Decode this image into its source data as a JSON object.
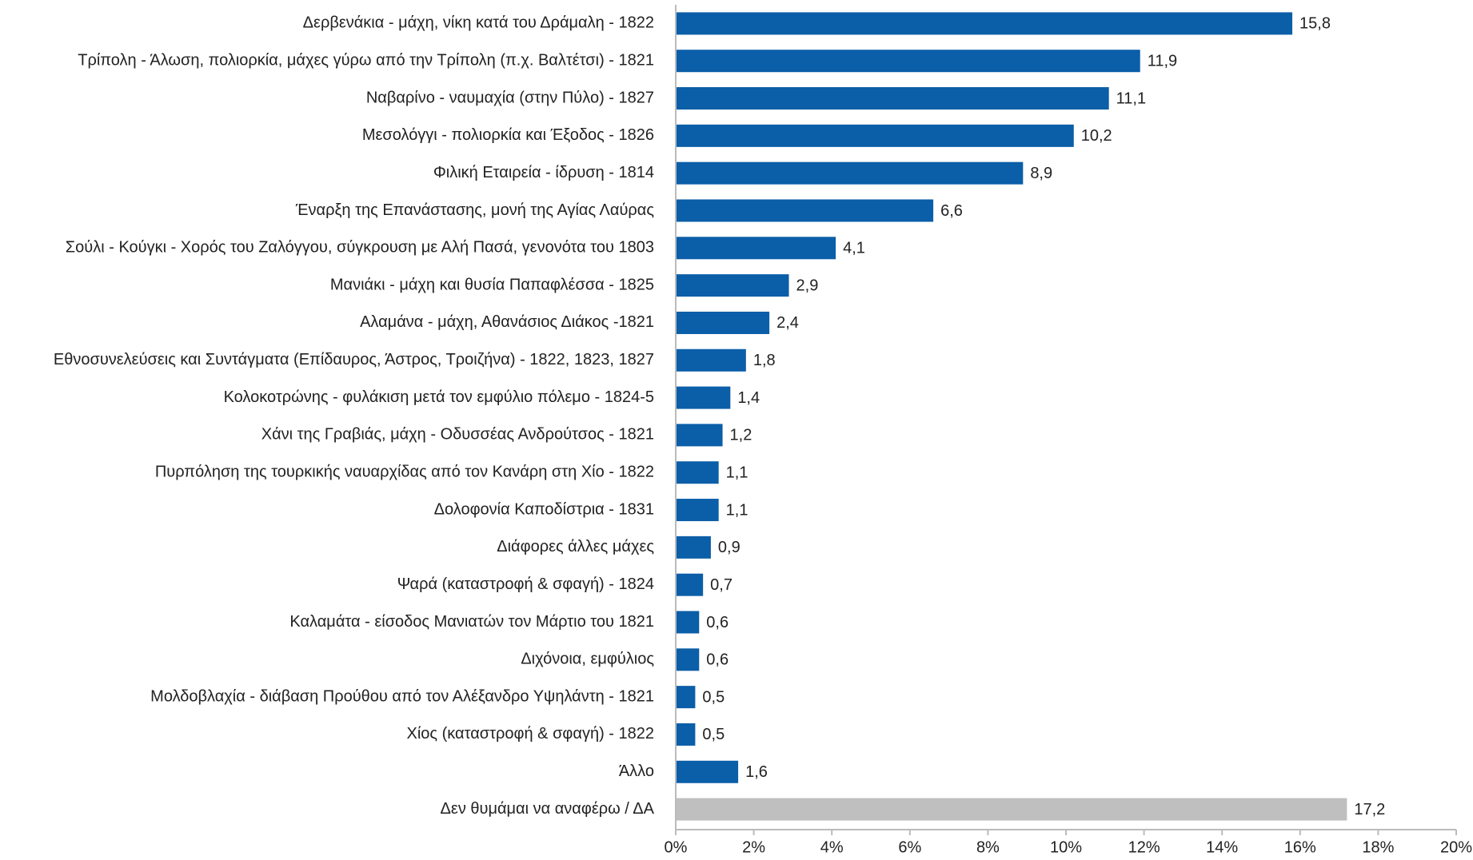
{
  "chart_data": {
    "type": "barh",
    "categories": [
      "Δερβενάκια - μάχη, νίκη κατά του Δράμαλη - 1822",
      "Τρίπολη - Άλωση, πολιορκία, μάχες γύρω από την Τρίπολη (π.χ. Βαλτέτσι) - 1821",
      "Ναβαρίνο - ναυμαχία (στην Πύλο) - 1827",
      "Μεσολόγγι - πολιορκία και Έξοδος - 1826",
      "Φιλική Εταιρεία - ίδρυση - 1814",
      "Έναρξη της Επανάστασης, μονή της Αγίας Λαύρας",
      "Σούλι - Κούγκι - Χορός του Ζαλόγγου, σύγκρουση με Αλή Πασά, γενονότα του 1803",
      "Μανιάκι - μάχη και θυσία Παπαφλέσσα - 1825",
      "Αλαμάνα - μάχη, Αθανάσιος Διάκος -1821",
      "Εθνοσυνελεύσεις και Συντάγματα (Επίδαυρος, Άστρος, Τροιζήνα) - 1822, 1823, 1827",
      "Κολοκοτρώνης - φυλάκιση μετά τον εμφύλιο πόλεμο - 1824-5",
      "Χάνι της Γραβιάς, μάχη - Οδυσσέας Ανδρούτσος - 1821",
      "Πυρπόληση της τουρκικής ναυαρχίδας από τον Κανάρη στη Χίο - 1822",
      "Δολοφονία Καποδίστρια - 1831",
      "Διάφορες άλλες μάχες",
      "Ψαρά (καταστροφή & σφαγή) - 1824",
      "Καλαμάτα - είσοδος Μανιατών τον Μάρτιο του 1821",
      "Διχόνοια, εμφύλιος",
      "Μολδοβλαχία - διάβαση Προύθου από τον Αλέξανδρο Υψηλάντη - 1821",
      "Χίος (καταστροφή & σφαγή) - 1822",
      "Άλλο",
      "Δεν θυμάμαι να αναφέρω / ΔΑ"
    ],
    "values": [
      15.8,
      11.9,
      11.1,
      10.2,
      8.9,
      6.6,
      4.1,
      2.9,
      2.4,
      1.8,
      1.4,
      1.2,
      1.1,
      1.1,
      0.9,
      0.7,
      0.6,
      0.6,
      0.5,
      0.5,
      1.6,
      17.2
    ],
    "value_labels": [
      "15,8",
      "11,9",
      "11,1",
      "10,2",
      "8,9",
      "6,6",
      "4,1",
      "2,9",
      "2,4",
      "1,8",
      "1,4",
      "1,2",
      "1,1",
      "1,1",
      "0,9",
      "0,7",
      "0,6",
      "0,6",
      "0,5",
      "0,5",
      "1,6",
      "17,2"
    ],
    "colors": [
      "#0b5ea8",
      "#0b5ea8",
      "#0b5ea8",
      "#0b5ea8",
      "#0b5ea8",
      "#0b5ea8",
      "#0b5ea8",
      "#0b5ea8",
      "#0b5ea8",
      "#0b5ea8",
      "#0b5ea8",
      "#0b5ea8",
      "#0b5ea8",
      "#0b5ea8",
      "#0b5ea8",
      "#0b5ea8",
      "#0b5ea8",
      "#0b5ea8",
      "#0b5ea8",
      "#0b5ea8",
      "#0b5ea8",
      "#bfbfbf"
    ],
    "xlim": [
      0,
      20
    ],
    "xticks": [
      {
        "value": 0,
        "label": "0%"
      },
      {
        "value": 2,
        "label": "2%"
      },
      {
        "value": 4,
        "label": "4%"
      },
      {
        "value": 6,
        "label": "6%"
      },
      {
        "value": 8,
        "label": "8%"
      },
      {
        "value": 10,
        "label": "10%"
      },
      {
        "value": 12,
        "label": "12%"
      },
      {
        "value": 14,
        "label": "14%"
      },
      {
        "value": 16,
        "label": "16%"
      },
      {
        "value": 18,
        "label": "18%"
      },
      {
        "value": 20,
        "label": "20%"
      }
    ]
  }
}
